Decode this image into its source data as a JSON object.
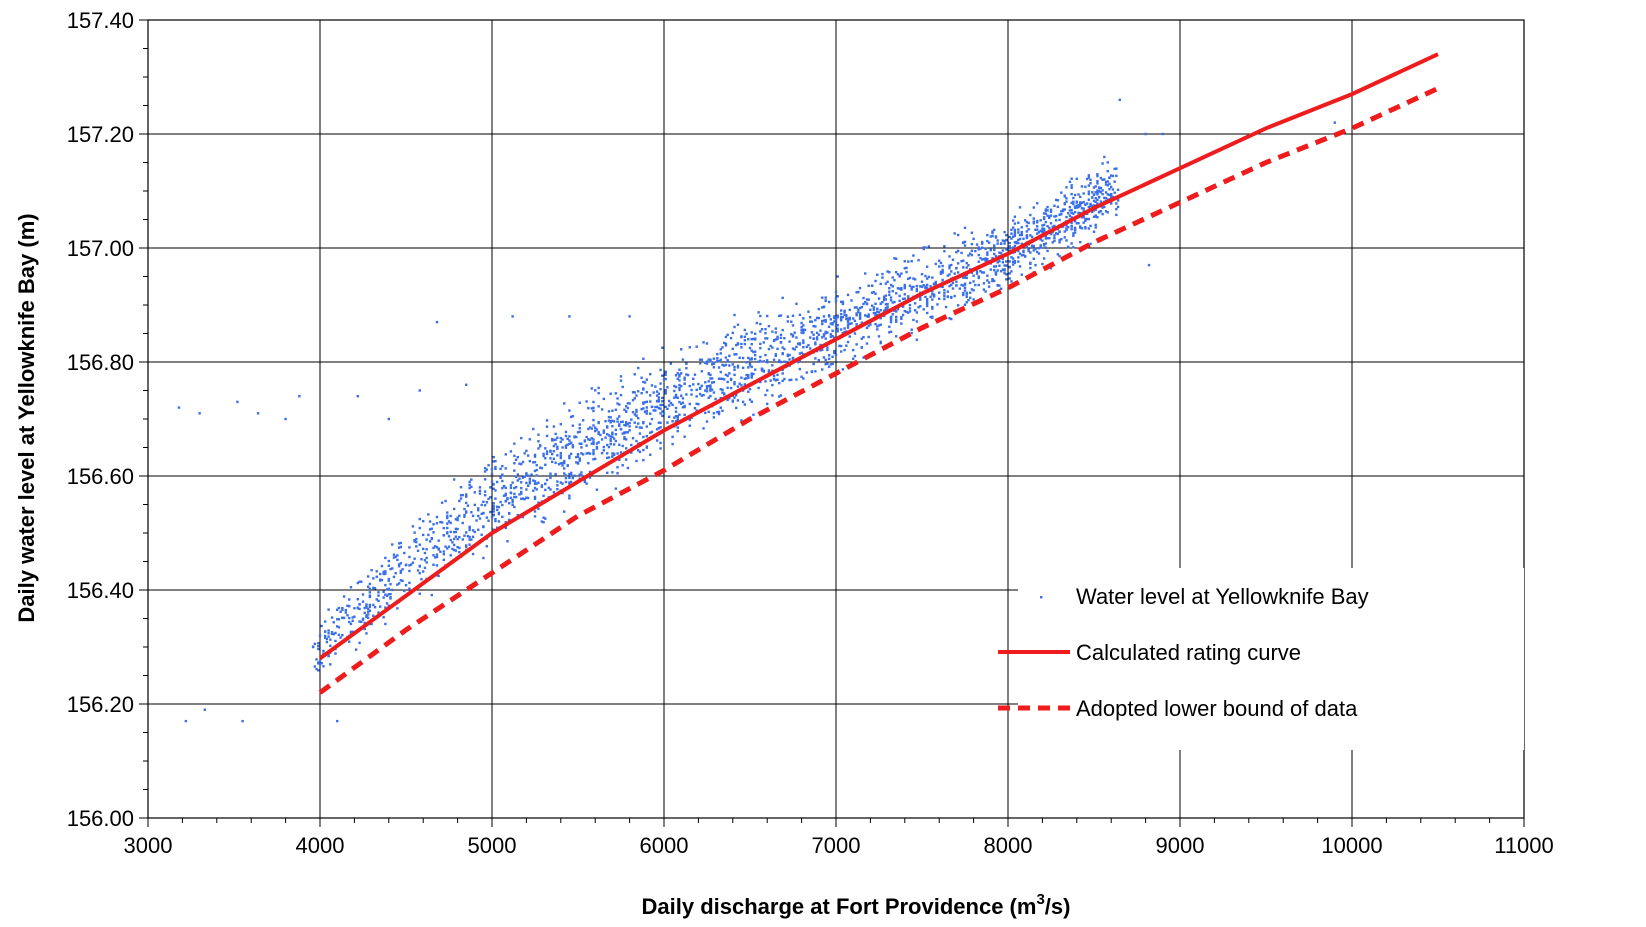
{
  "chart_data": {
    "type": "scatter",
    "title": "",
    "xlabel": "Daily discharge at Fort Providence (m",
    "xlabel_superscript": "3",
    "xlabel_suffix": "/s)",
    "ylabel": "Daily water level at Yellowknife Bay (m)",
    "xlim": [
      3000,
      11000
    ],
    "ylim": [
      156.0,
      157.4
    ],
    "x_ticks": [
      3000,
      4000,
      5000,
      6000,
      7000,
      8000,
      9000,
      10000,
      11000
    ],
    "y_ticks": [
      156.0,
      156.2,
      156.4,
      156.6,
      156.8,
      157.0,
      157.2,
      157.4
    ],
    "x_tick_labels": [
      "3000",
      "4000",
      "5000",
      "6000",
      "7000",
      "8000",
      "9000",
      "10000",
      "11000"
    ],
    "y_tick_labels": [
      "156.00",
      "156.20",
      "156.40",
      "156.60",
      "156.80",
      "157.00",
      "157.20",
      "157.40"
    ],
    "grid": true,
    "legend_position": "lower-right",
    "colors": {
      "scatter": "#3a6fe8",
      "rating": "#ee1c1c",
      "lower_bound": "#ee1c1c",
      "grid": "#000000",
      "background": "#ffffff"
    },
    "series": [
      {
        "name": "Water level at Yellowknife Bay",
        "kind": "scatter",
        "approx_count": 2500,
        "summary_band": {
          "x": [
            3700,
            4000,
            4500,
            5000,
            5500,
            6000,
            6500,
            7000,
            7500,
            8000,
            8500,
            8900
          ],
          "y_low": [
            156.18,
            156.24,
            156.34,
            156.44,
            156.53,
            156.61,
            156.69,
            156.76,
            156.83,
            156.91,
            157.0,
            157.08
          ],
          "y_high": [
            156.22,
            156.36,
            156.55,
            156.66,
            156.76,
            156.85,
            156.9,
            156.96,
            157.02,
            157.08,
            157.17,
            157.2
          ]
        },
        "sample_points": [
          [
            3180,
            156.72
          ],
          [
            3300,
            156.71
          ],
          [
            3520,
            156.73
          ],
          [
            3640,
            156.71
          ],
          [
            3800,
            156.7
          ],
          [
            3880,
            156.74
          ],
          [
            3220,
            156.17
          ],
          [
            3330,
            156.19
          ],
          [
            3550,
            156.17
          ],
          [
            4100,
            156.17
          ],
          [
            4220,
            156.74
          ],
          [
            4400,
            156.7
          ],
          [
            4580,
            156.75
          ],
          [
            4680,
            156.87
          ],
          [
            4850,
            156.76
          ],
          [
            5120,
            156.88
          ],
          [
            5450,
            156.88
          ],
          [
            5800,
            156.88
          ],
          [
            8650,
            157.26
          ],
          [
            8800,
            157.2
          ],
          [
            8900,
            157.2
          ],
          [
            8820,
            156.97
          ],
          [
            9900,
            157.22
          ]
        ]
      },
      {
        "name": "Calculated rating curve",
        "kind": "line",
        "x": [
          4000,
          4500,
          5000,
          5500,
          6000,
          6500,
          7000,
          7500,
          8000,
          8500,
          9000,
          9500,
          10000,
          10500
        ],
        "y": [
          156.28,
          156.39,
          156.5,
          156.59,
          156.68,
          156.76,
          156.84,
          156.92,
          156.99,
          157.07,
          157.14,
          157.21,
          157.27,
          157.34
        ]
      },
      {
        "name": "Adopted lower bound of data",
        "kind": "dashed-line",
        "x": [
          4000,
          4500,
          5000,
          5500,
          6000,
          6500,
          7000,
          7500,
          8000,
          8500,
          9000,
          9500,
          10000,
          10500
        ],
        "y": [
          156.22,
          156.33,
          156.43,
          156.53,
          156.61,
          156.7,
          156.78,
          156.86,
          156.93,
          157.01,
          157.08,
          157.15,
          157.21,
          157.28
        ]
      }
    ]
  }
}
